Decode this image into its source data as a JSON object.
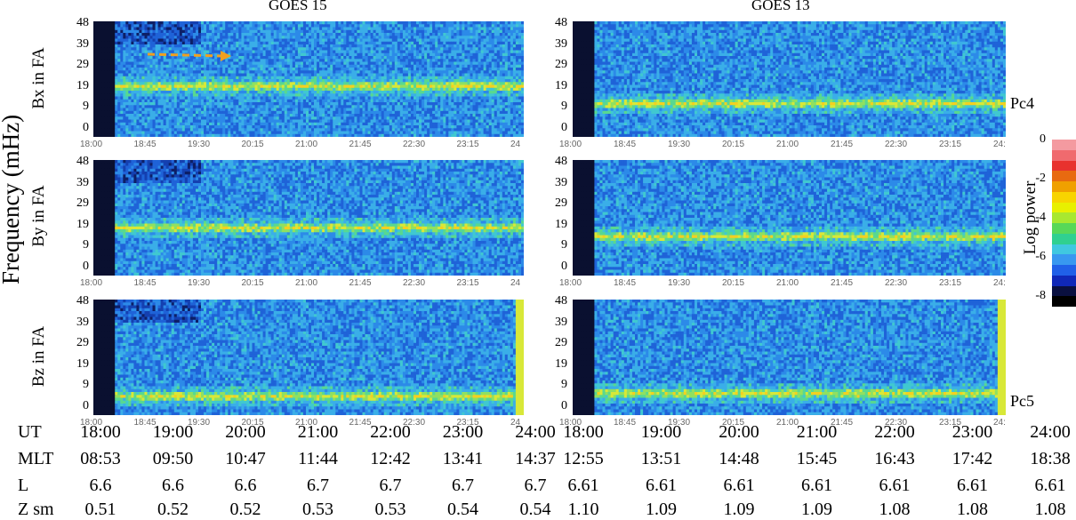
{
  "titles": [
    "GOES 15",
    "GOES 13"
  ],
  "ylabel": "Frequency (mHz)",
  "colorbar": {
    "label": "Log power",
    "ticks": [
      "0",
      "-2",
      "-4",
      "-6",
      "-8"
    ],
    "colors": [
      "#f49aa0",
      "#f06a6e",
      "#e8322e",
      "#e86a10",
      "#f0a000",
      "#f8d400",
      "#e8f000",
      "#a8e830",
      "#58d858",
      "#30d090",
      "#40c8e0",
      "#3898f0",
      "#2060e8",
      "#1028b8",
      "#0a1040",
      "#000000"
    ]
  },
  "annotations": [
    "Pc4",
    "Pc5"
  ],
  "chart_data": {
    "type": "heatmap",
    "description_ranges": {
      "x_label": "UT",
      "y_unit": "mHz"
    },
    "y_ticks": [
      "48",
      "39",
      "29",
      "19",
      "9",
      "0"
    ],
    "x_ticks_small": [
      "18:00",
      "18:45",
      "19:30",
      "20:15",
      "21:00",
      "21:45",
      "22:30",
      "23:15",
      "24"
    ],
    "x_ticks_small_right": [
      "18:00",
      "18:45",
      "19:30",
      "20:15",
      "21:00",
      "21:45",
      "22:30",
      "23:15",
      "24:"
    ],
    "panels": [
      {
        "satellite": "GOES 15",
        "component": "Bx in FA",
        "ridge_mHz": 20
      },
      {
        "satellite": "GOES 15",
        "component": "By in FA",
        "ridge_mHz": 19
      },
      {
        "satellite": "GOES 15",
        "component": "Bz in FA",
        "ridge_mHz": 5
      },
      {
        "satellite": "GOES 13",
        "component": "Bx in FA",
        "ridge_mHz": 12
      },
      {
        "satellite": "GOES 13",
        "component": "By in FA",
        "ridge_mHz": 14
      },
      {
        "satellite": "GOES 13",
        "component": "Bz in FA",
        "ridge_mHz": 6
      }
    ],
    "table": {
      "rows": [
        {
          "label": "UT",
          "left": [
            "18:00",
            "19:00",
            "20:00",
            "21:00",
            "22:00",
            "23:00",
            "24:00"
          ],
          "right": [
            "18:00",
            "19:00",
            "20:00",
            "21:00",
            "22:00",
            "23:00",
            "24:00"
          ]
        },
        {
          "label": "MLT",
          "left": [
            "08:53",
            "09:50",
            "10:47",
            "11:44",
            "12:42",
            "13:41",
            "14:37"
          ],
          "right": [
            "12:55",
            "13:51",
            "14:48",
            "15:45",
            "16:43",
            "17:42",
            "18:38"
          ]
        },
        {
          "label": "L",
          "left": [
            "6.6",
            "6.6",
            "6.6",
            "6.7",
            "6.7",
            "6.7",
            "6.7"
          ],
          "right": [
            "6.61",
            "6.61",
            "6.61",
            "6.61",
            "6.61",
            "6.61",
            "6.61"
          ]
        },
        {
          "label": "Z sm",
          "left": [
            "0.51",
            "0.52",
            "0.52",
            "0.53",
            "0.53",
            "0.54",
            "0.54"
          ],
          "right": [
            "1.10",
            "1.09",
            "1.09",
            "1.09",
            "1.08",
            "1.08",
            "1.08"
          ]
        }
      ]
    }
  }
}
